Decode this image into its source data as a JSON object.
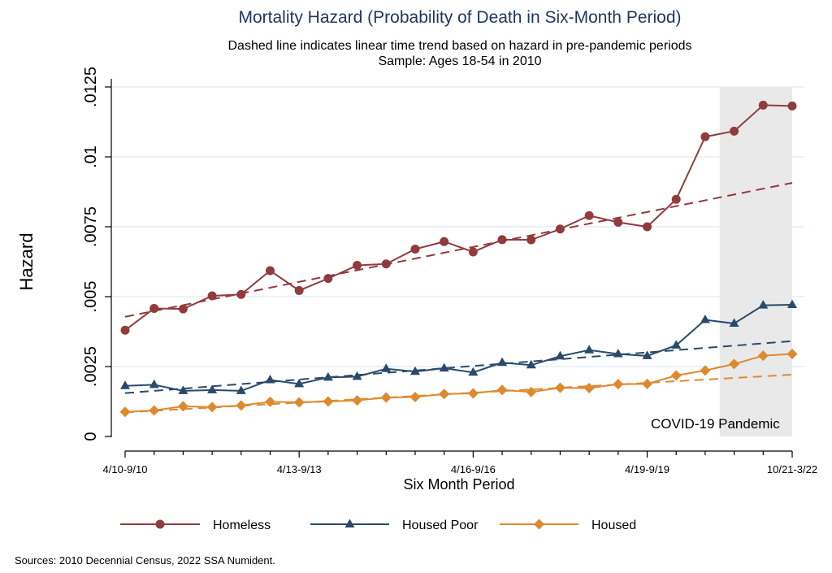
{
  "chart_data": {
    "type": "line",
    "title": "Mortality Hazard (Probability of Death in Six-Month Period)",
    "subtitle_lines": [
      "Dashed line indicates linear time trend based on hazard in pre-pandemic periods",
      "Sample: Ages 18-54 in 2010"
    ],
    "xlabel": "Six Month Period",
    "ylabel": "Hazard",
    "ylim": [
      0,
      0.0125
    ],
    "yticks": [
      {
        "value": 0,
        "label": "0"
      },
      {
        "value": 0.0025,
        "label": ".0025"
      },
      {
        "value": 0.005,
        "label": ".005"
      },
      {
        "value": 0.0075,
        "label": ".0075"
      },
      {
        "value": 0.01,
        "label": ".01"
      },
      {
        "value": 0.0125,
        "label": ".0125"
      }
    ],
    "n_periods": 24,
    "xticks": [
      {
        "index": 0,
        "label": "4/10-9/10"
      },
      {
        "index": 6,
        "label": "4/13-9/13"
      },
      {
        "index": 12,
        "label": "4/16-9/16"
      },
      {
        "index": 18,
        "label": "4/19-9/19"
      },
      {
        "index": 23,
        "label": "10/21-3/22"
      }
    ],
    "shaded_region": {
      "from_index": 20.5,
      "to_index": 23,
      "label": "COVID-19 Pandemic",
      "color": "#e9e9e9"
    },
    "grid": true,
    "legend_position": "bottom",
    "series": [
      {
        "name": "Homeless",
        "color": "#903c3e",
        "marker": "circle",
        "values": [
          0.0038,
          0.00458,
          0.00456,
          0.00503,
          0.00508,
          0.00593,
          0.00522,
          0.00565,
          0.00612,
          0.00617,
          0.0067,
          0.00697,
          0.0066,
          0.00704,
          0.00703,
          0.00742,
          0.0079,
          0.00766,
          0.0075,
          0.00848,
          0.01072,
          0.01092,
          0.01185,
          0.01182
        ],
        "trend": [
          0.00428,
          0.00907
        ]
      },
      {
        "name": "Housed Poor",
        "color": "#2a4a6b",
        "marker": "triangle",
        "values": [
          0.00181,
          0.00185,
          0.00163,
          0.00166,
          0.00163,
          0.00202,
          0.00188,
          0.00211,
          0.00214,
          0.00242,
          0.00232,
          0.00244,
          0.00229,
          0.00264,
          0.00255,
          0.00287,
          0.00309,
          0.00295,
          0.00288,
          0.00326,
          0.00417,
          0.00404,
          0.00469,
          0.00471
        ],
        "trend": [
          0.00155,
          0.00341
        ]
      },
      {
        "name": "Housed",
        "color": "#dd8a2e",
        "marker": "diamond",
        "values": [
          0.00088,
          0.00093,
          0.00108,
          0.00105,
          0.00111,
          0.00124,
          0.00122,
          0.00125,
          0.00129,
          0.00139,
          0.00141,
          0.00152,
          0.00154,
          0.00166,
          0.00159,
          0.00174,
          0.00173,
          0.00187,
          0.00188,
          0.00218,
          0.00236,
          0.00259,
          0.00289,
          0.00295
        ],
        "trend": [
          0.00086,
          0.00221
        ]
      }
    ]
  },
  "source_note": "Sources: 2010 Decennial Census, 2022 SSA Numident."
}
